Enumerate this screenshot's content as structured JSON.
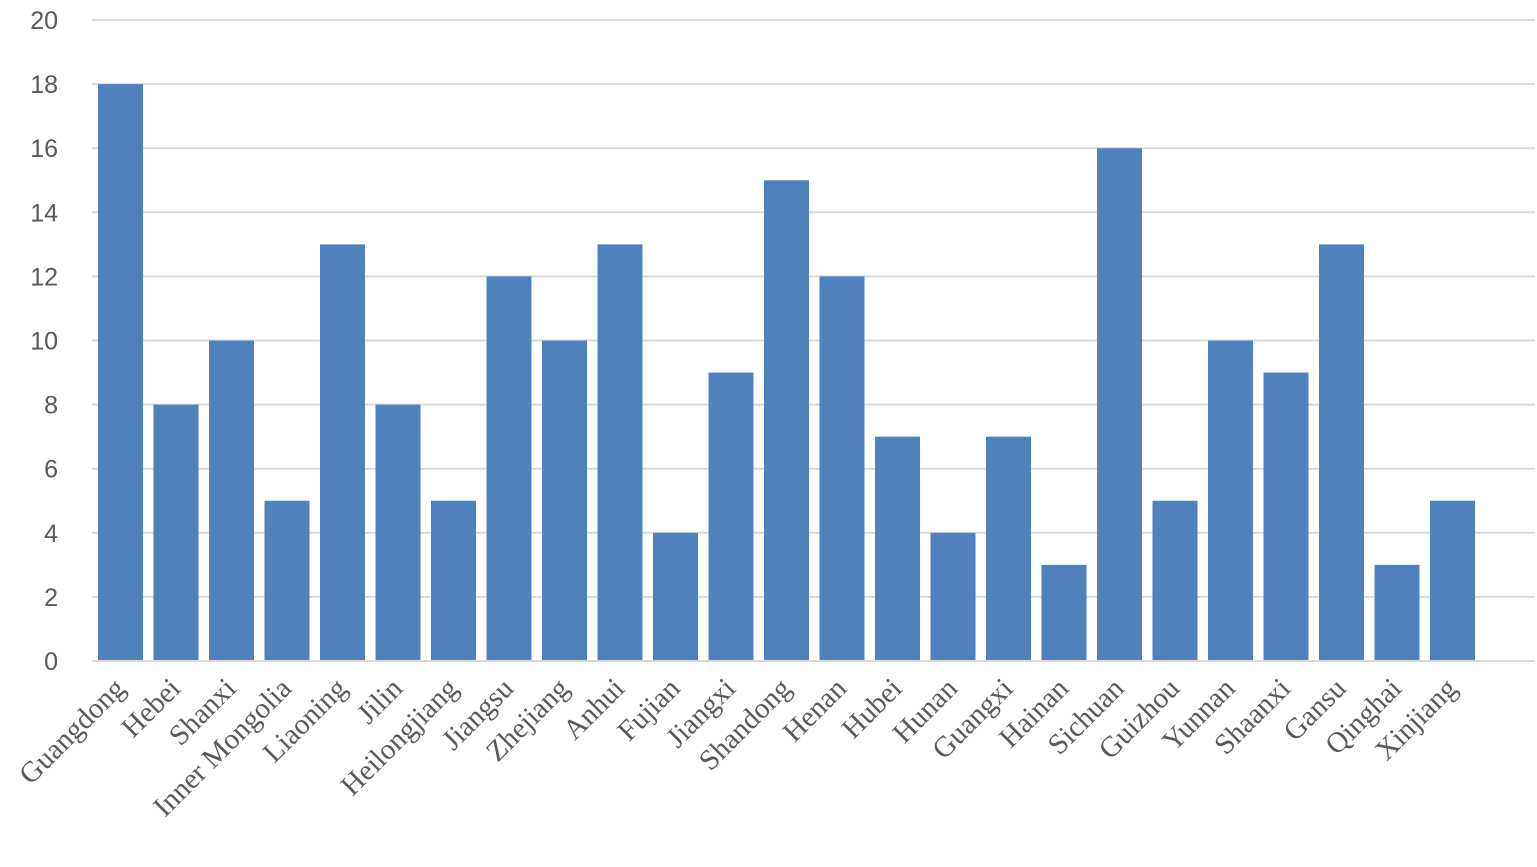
{
  "chart_data": {
    "type": "bar",
    "title": "",
    "xlabel": "",
    "ylabel": "",
    "ylim": [
      0,
      20
    ],
    "yticks": [
      0,
      2,
      4,
      6,
      8,
      10,
      12,
      14,
      16,
      18,
      20
    ],
    "grid": true,
    "legend": "none",
    "bar_color": "#4f81bd",
    "categories": [
      "Guangdong",
      "Hebei",
      "Shanxi",
      "Inner Mongolia",
      "Liaoning",
      "Jilin",
      "Heilongjiang",
      "Jiangsu",
      "Zhejiang",
      "Anhui",
      "Fujian",
      "Jiangxi",
      "Shandong",
      "Henan",
      "Hubei",
      "Hunan",
      "Guangxi",
      "Hainan",
      "Sichuan",
      "Guizhou",
      "Yunnan",
      "Shaanxi",
      "Gansu",
      "Qinghai",
      "Xinjiang"
    ],
    "values": [
      18,
      8,
      10,
      5,
      13,
      8,
      5,
      12,
      10,
      13,
      4,
      9,
      15,
      12,
      7,
      4,
      7,
      3,
      16,
      5,
      10,
      9,
      13,
      3,
      5
    ]
  }
}
